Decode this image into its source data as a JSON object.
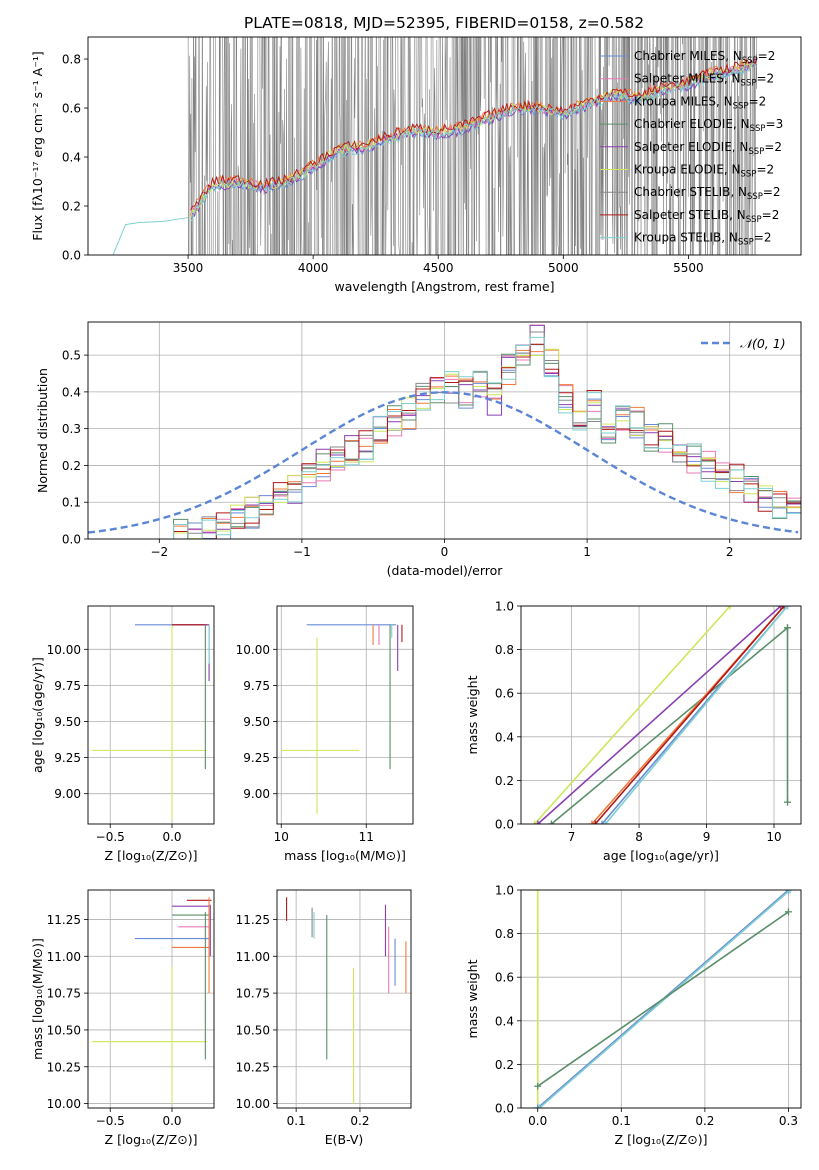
{
  "figure_title": "PLATE=0818, MJD=52395, FIBERID=0158, z=0.582",
  "colors": {
    "chabrier_miles": "#6a8bd6",
    "salpeter_miles": "#e87ab6",
    "kroupa_miles": "#f07a3c",
    "chabrier_elodie": "#5b8f6a",
    "salpeter_elodie": "#8a3fb0",
    "kroupa_elodie": "#cce85a",
    "chabrier_stelib": "#888888",
    "salpeter_stelib": "#b01818",
    "kroupa_stelib": "#7ecfcf",
    "normal": "#5b86d6",
    "data": "#808080"
  },
  "chart_data": [
    {
      "id": "spectrum",
      "type": "line",
      "xlabel": "wavelength [Angstrom, rest frame]",
      "ylabel": "Flux [fλ10⁻¹⁷ erg cm⁻² s⁻¹ A⁻¹]",
      "xlim": [
        3100,
        5950
      ],
      "ylim": [
        0,
        0.89
      ],
      "xticks": [
        "3500",
        "4000",
        "4500",
        "5000",
        "5500"
      ],
      "yticks": [
        "0.0",
        "0.2",
        "0.4",
        "0.6",
        "0.8"
      ],
      "legend_position": "top-right",
      "legend": [
        {
          "label": "Chabrier MILES, N",
          "sub": "SSP",
          "tail": "=2",
          "color_key": "chabrier_miles"
        },
        {
          "label": "Salpeter MILES, N",
          "sub": "SSP",
          "tail": "=2",
          "color_key": "salpeter_miles"
        },
        {
          "label": "Kroupa MILES, N",
          "sub": "SSP",
          "tail": "=2",
          "color_key": "kroupa_miles"
        },
        {
          "label": "Chabrier ELODIE, N",
          "sub": "SSP",
          "tail": "=3",
          "color_key": "chabrier_elodie"
        },
        {
          "label": "Salpeter ELODIE, N",
          "sub": "SSP",
          "tail": "=2",
          "color_key": "salpeter_elodie"
        },
        {
          "label": "Kroupa ELODIE, N",
          "sub": "SSP",
          "tail": "=2",
          "color_key": "kroupa_elodie"
        },
        {
          "label": "Chabrier STELIB, N",
          "sub": "SSP",
          "tail": "=2",
          "color_key": "chabrier_stelib"
        },
        {
          "label": "Salpeter STELIB, N",
          "sub": "SSP",
          "tail": "=2",
          "color_key": "salpeter_stelib"
        },
        {
          "label": "Kroupa STELIB, N",
          "sub": "SSP",
          "tail": "=2",
          "color_key": "kroupa_stelib"
        }
      ],
      "stelib_model": {
        "x": [
          3200,
          3250,
          3300,
          3400,
          3500
        ],
        "y": [
          0.0,
          0.12,
          0.13,
          0.14,
          0.15
        ]
      },
      "model_continuum": {
        "x": [
          3500,
          3600,
          3700,
          3800,
          3900,
          4000,
          4100,
          4200,
          4300,
          4400,
          4500,
          4600,
          4700,
          4800,
          4900,
          5000,
          5100,
          5200,
          5300,
          5400,
          5500,
          5600,
          5700,
          5800
        ],
        "y": [
          0.15,
          0.29,
          0.3,
          0.28,
          0.3,
          0.36,
          0.43,
          0.44,
          0.48,
          0.51,
          0.5,
          0.52,
          0.56,
          0.6,
          0.6,
          0.58,
          0.62,
          0.66,
          0.64,
          0.68,
          0.7,
          0.74,
          0.76,
          0.8
        ]
      },
      "data_range": [
        3500,
        5780
      ]
    },
    {
      "id": "residuals",
      "type": "bar",
      "xlabel": "(data-model)/error",
      "ylabel": "Normed distribution",
      "xlim": [
        -2.5,
        2.5
      ],
      "ylim": [
        0,
        0.59
      ],
      "xticks": [
        "−2",
        "−1",
        "0",
        "1",
        "2"
      ],
      "yticks": [
        "0.0",
        "0.1",
        "0.2",
        "0.3",
        "0.4",
        "0.5"
      ],
      "legend": [
        {
          "label": "𝒩(0, 1)",
          "color_key": "normal"
        }
      ],
      "bin_width": 0.1,
      "bins_start": -2.5,
      "reference_hist": [
        0.0,
        0.0,
        0.0,
        0.0,
        0.0,
        0.0,
        0.01,
        0.015,
        0.02,
        0.035,
        0.05,
        0.07,
        0.08,
        0.12,
        0.14,
        0.16,
        0.2,
        0.22,
        0.24,
        0.25,
        0.3,
        0.32,
        0.34,
        0.38,
        0.4,
        0.41,
        0.4,
        0.42,
        0.38,
        0.46,
        0.5,
        0.54,
        0.48,
        0.38,
        0.34,
        0.36,
        0.3,
        0.34,
        0.32,
        0.28,
        0.28,
        0.24,
        0.22,
        0.2,
        0.18,
        0.16,
        0.14,
        0.12,
        0.1,
        0.08
      ]
    },
    {
      "id": "age-vs-Z",
      "type": "scatter",
      "xlabel": "Z [log₁₀(Z/Z⊙)]",
      "ylabel": "age  [log₁₀(age/yr)]",
      "xlim": [
        -0.68,
        0.34
      ],
      "ylim": [
        8.79,
        10.3
      ],
      "xticks": [
        "−0.5",
        "0.0"
      ],
      "yticks": [
        "9.00",
        "9.25",
        "9.50",
        "9.75",
        "10.00"
      ],
      "xtick_values": [
        -0.5,
        0.0
      ],
      "ytick_values": [
        9.0,
        9.25,
        9.5,
        9.75,
        10.0
      ]
    },
    {
      "id": "age-vs-mass",
      "type": "scatter",
      "xlabel": "mass [log₁₀(M/M⊙)]",
      "xlim": [
        9.95,
        11.55
      ],
      "ylim": [
        8.79,
        10.3
      ],
      "xticks": [
        "10",
        "11"
      ],
      "yticks": [
        "9.00",
        "9.25",
        "9.50",
        "9.75",
        "10.00"
      ],
      "xtick_values": [
        10,
        11
      ],
      "ytick_values": [
        9.0,
        9.25,
        9.5,
        9.75,
        10.0
      ]
    },
    {
      "id": "weight-vs-age",
      "type": "line",
      "xlabel": "age  [log₁₀(age/yr)]",
      "ylabel": "mass weight",
      "xlim": [
        6.25,
        10.4
      ],
      "ylim": [
        0,
        1
      ],
      "xticks": [
        "7",
        "8",
        "9",
        "10"
      ],
      "yticks": [
        "0.0",
        "0.2",
        "0.4",
        "0.6",
        "0.8",
        "1.0"
      ],
      "xtick_values": [
        7,
        8,
        9,
        10
      ],
      "ytick_values": [
        0,
        0.2,
        0.4,
        0.6,
        0.8,
        1.0
      ],
      "lines": [
        {
          "color_key": "kroupa_elodie",
          "x": [
            6.45,
            9.35
          ],
          "y": [
            0,
            1
          ]
        },
        {
          "color_key": "salpeter_elodie",
          "x": [
            6.5,
            10.1
          ],
          "y": [
            0,
            1
          ]
        },
        {
          "color_key": "chabrier_elodie",
          "x": [
            6.7,
            10.2
          ],
          "y": [
            0,
            0.9
          ]
        },
        {
          "color_key": "kroupa_miles",
          "x": [
            7.3,
            10.15
          ],
          "y": [
            0,
            1
          ]
        },
        {
          "color_key": "salpeter_stelib",
          "x": [
            7.35,
            10.15
          ],
          "y": [
            0,
            1
          ]
        },
        {
          "color_key": "chabrier_miles",
          "x": [
            7.45,
            10.2
          ],
          "y": [
            0,
            1
          ]
        },
        {
          "color_key": "kroupa_stelib",
          "x": [
            7.5,
            10.2
          ],
          "y": [
            0,
            1
          ]
        },
        {
          "color_key": "chabrier_elodie",
          "x": [
            10.2,
            10.2
          ],
          "y": [
            0.1,
            0.9
          ]
        }
      ]
    },
    {
      "id": "mass-vs-Z",
      "type": "scatter",
      "xlabel": "Z [log₁₀(Z/Z⊙)]",
      "ylabel": "mass [log₁₀(M/M⊙)]",
      "xlim": [
        -0.68,
        0.34
      ],
      "ylim": [
        9.97,
        11.45
      ],
      "xticks": [
        "−0.5",
        "0.0"
      ],
      "yticks": [
        "10.00",
        "10.25",
        "10.50",
        "10.75",
        "11.00",
        "11.25"
      ],
      "xtick_values": [
        -0.5,
        0.0
      ],
      "ytick_values": [
        10.0,
        10.25,
        10.5,
        10.75,
        11.0,
        11.25
      ]
    },
    {
      "id": "mass-vs-EBV",
      "type": "scatter",
      "xlabel": "E(B-V)",
      "xlim": [
        0.07,
        0.28
      ],
      "ylim": [
        9.97,
        11.45
      ],
      "xticks": [
        "0.1",
        "0.2"
      ],
      "yticks": [
        "10.00",
        "10.25",
        "10.50",
        "10.75",
        "11.00",
        "11.25"
      ],
      "xtick_values": [
        0.1,
        0.2
      ],
      "ytick_values": [
        10.0,
        10.25,
        10.5,
        10.75,
        11.0,
        11.25
      ]
    },
    {
      "id": "weight-vs-Z",
      "type": "line",
      "xlabel": "Z [log₁₀(Z/Z⊙)]",
      "ylabel": "mass weight",
      "xlim": [
        -0.02,
        0.315
      ],
      "ylim": [
        0,
        1
      ],
      "xticks": [
        "0.0",
        "0.1",
        "0.2",
        "0.3"
      ],
      "yticks": [
        "0.0",
        "0.2",
        "0.4",
        "0.6",
        "0.8",
        "1.0"
      ],
      "xtick_values": [
        0,
        0.1,
        0.2,
        0.3
      ],
      "ytick_values": [
        0,
        0.2,
        0.4,
        0.6,
        0.8,
        1.0
      ],
      "lines": [
        {
          "color_key": "kroupa_elodie",
          "x": [
            0.0,
            0.0
          ],
          "y": [
            0,
            1
          ]
        },
        {
          "color_key": "chabrier_miles",
          "x": [
            0.0,
            0.3
          ],
          "y": [
            0,
            1
          ]
        },
        {
          "color_key": "kroupa_stelib",
          "x": [
            0.002,
            0.302
          ],
          "y": [
            0,
            1
          ]
        },
        {
          "color_key": "chabrier_elodie",
          "x": [
            0.0,
            0.3
          ],
          "y": [
            0.1,
            0.9
          ]
        }
      ]
    }
  ]
}
